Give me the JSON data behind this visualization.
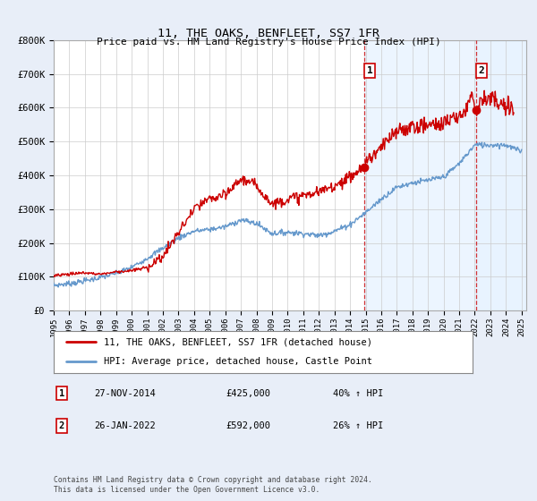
{
  "title": "11, THE OAKS, BENFLEET, SS7 1FR",
  "subtitle": "Price paid vs. HM Land Registry's House Price Index (HPI)",
  "ylim": [
    0,
    800000
  ],
  "yticks": [
    0,
    100000,
    200000,
    300000,
    400000,
    500000,
    600000,
    700000,
    800000
  ],
  "ytick_labels": [
    "£0",
    "£100K",
    "£200K",
    "£300K",
    "£400K",
    "£500K",
    "£600K",
    "£700K",
    "£800K"
  ],
  "red_line_color": "#cc0000",
  "blue_line_color": "#6699cc",
  "vline_color": "#cc0000",
  "shade_color": "#ddeeff",
  "marker1_date": 2014.91,
  "marker1_price": 425000,
  "marker1_label": "1",
  "marker2_date": 2022.07,
  "marker2_price": 592000,
  "marker2_label": "2",
  "sale1_text": "27-NOV-2014",
  "sale1_price": "£425,000",
  "sale1_hpi": "40% ↑ HPI",
  "sale2_text": "26-JAN-2022",
  "sale2_price": "£592,000",
  "sale2_hpi": "26% ↑ HPI",
  "legend_line1": "11, THE OAKS, BENFLEET, SS7 1FR (detached house)",
  "legend_line2": "HPI: Average price, detached house, Castle Point",
  "footnote": "Contains HM Land Registry data © Crown copyright and database right 2024.\nThis data is licensed under the Open Government Licence v3.0.",
  "fig_bg_color": "#e8eef8",
  "plot_bg_color": "#ffffff",
  "xlim_left": 1995,
  "xlim_right": 2025.3
}
